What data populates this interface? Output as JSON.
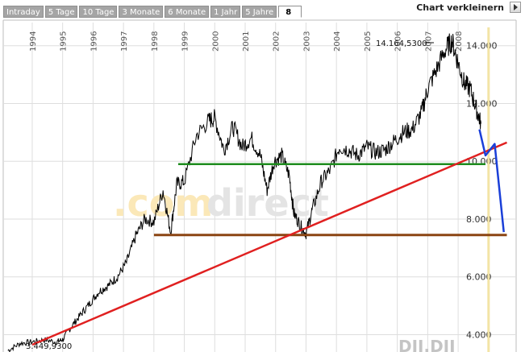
{
  "tabs": [
    {
      "label": "Intraday"
    },
    {
      "label": "5 Tage"
    },
    {
      "label": "10 Tage"
    },
    {
      "label": "3 Monate"
    },
    {
      "label": "6 Monate"
    },
    {
      "label": "1 Jahr"
    },
    {
      "label": "5 Jahre"
    },
    {
      "label": "8"
    }
  ],
  "toolbar": {
    "shrink_label": "Chart verkleinern"
  },
  "watermark": {
    "part1": ".com",
    "part2": "direct"
  },
  "symbol": "DJI.DJI",
  "annotations": {
    "high": "14.164,5300",
    "low": "3.449,9300"
  },
  "colors": {
    "price": "#000000",
    "support": "#8b4513",
    "resistance": "#1e8c1e",
    "trend": "#e02020",
    "forecast": "#1a3fd8",
    "cursor": "#f3e4a6"
  },
  "chart_data": {
    "type": "line",
    "x_years": [
      "1994",
      "1995",
      "1996",
      "1997",
      "1998",
      "1999",
      "2000",
      "2001",
      "2002",
      "2003",
      "2004",
      "2005",
      "2006",
      "2007",
      "2008"
    ],
    "y_ticks": [
      "4.000",
      "6.000",
      "8.000",
      "10.000",
      "12.000",
      "14.000"
    ],
    "ylim": [
      3400,
      14800
    ],
    "xlim": [
      1993.1,
      2009.8
    ],
    "series": [
      {
        "x": [
          1993.2,
          1993.6,
          1994.0,
          1994.4,
          1994.8,
          1995.0,
          1995.3,
          1995.6,
          1995.9,
          1996.2,
          1996.5,
          1996.8,
          1997.1,
          1997.4,
          1997.7,
          1998.0,
          1998.3,
          1998.55,
          1998.75,
          1999.0,
          1999.4,
          1999.8,
          2000.0,
          2000.3,
          2000.6,
          2000.9,
          2001.2,
          2001.5,
          2001.72,
          2001.95,
          2002.2,
          2002.45,
          2002.6,
          2002.8,
          2003.0,
          2003.2,
          2003.5,
          2003.8,
          2004.1,
          2004.4,
          2004.7,
          2005.0,
          2005.3,
          2005.6,
          2005.9,
          2006.2,
          2006.5,
          2006.8,
          2007.0,
          2007.3,
          2007.6,
          2007.8,
          2008.0,
          2008.2,
          2008.4,
          2008.6,
          2008.75
        ],
        "y": [
          3450,
          3700,
          3750,
          3820,
          3750,
          3830,
          4300,
          4700,
          5100,
          5500,
          5700,
          6000,
          6500,
          7400,
          8000,
          7900,
          9000,
          7550,
          9200,
          9300,
          10900,
          11400,
          11500,
          10400,
          11200,
          10500,
          10800,
          10200,
          9000,
          10000,
          10200,
          9500,
          8200,
          7800,
          7500,
          8300,
          9300,
          9700,
          10500,
          10400,
          10200,
          10500,
          10300,
          10400,
          10700,
          11000,
          11100,
          11700,
          12500,
          13200,
          13900,
          14160,
          13400,
          12700,
          12500,
          11800,
          11300
        ]
      },
      {
        "name": "",
        "x": [
          1998.0,
          2009.6
        ],
        "y": [
          7450,
          7450
        ]
      },
      {
        "name": "",
        "x": [
          1998.8,
          2008.9
        ],
        "y": [
          9900,
          9900
        ]
      },
      {
        "name": "",
        "x": [
          1994.0,
          2009.6
        ],
        "y": [
          3650,
          10650
        ]
      },
      {
        "name": "",
        "x": [
          2008.7,
          2008.9,
          2009.2,
          2009.5
        ],
        "y": [
          11100,
          10200,
          10600,
          7550
        ]
      }
    ]
  }
}
